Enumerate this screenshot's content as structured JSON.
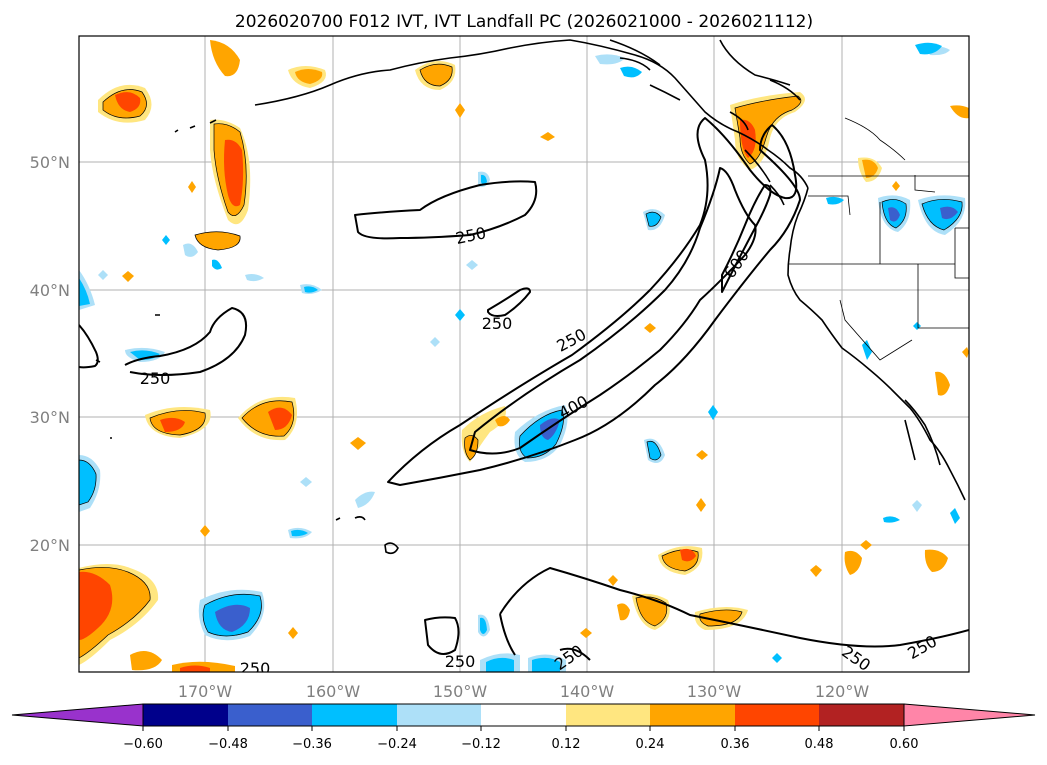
{
  "title": "2026020700 F012 IVT, IVT Landfall PC (2026021000 - 2026021112)",
  "latitude_labels": [
    "50°N",
    "40°N",
    "30°N",
    "20°N"
  ],
  "longitude_labels": [
    "170°W",
    "160°W",
    "150°W",
    "140°W",
    "130°W",
    "120°W"
  ],
  "contour_labels": [
    "250",
    "250",
    "250",
    "250",
    "250",
    "250",
    "250",
    "250",
    "400",
    "600"
  ],
  "colorbar": {
    "tick_labels": [
      "−0.60",
      "−0.48",
      "−0.36",
      "−0.24",
      "−0.12",
      "0.12",
      "0.24",
      "0.36",
      "0.48",
      "0.60"
    ],
    "colors": [
      "#9932CC",
      "#00008B",
      "#3A5FCD",
      "#00BFFF",
      "#ADE0F8",
      "#FFFFFF",
      "#FFE680",
      "#FFA500",
      "#FF4500",
      "#B22222",
      "#FF85A8"
    ],
    "extend": "both"
  },
  "colors": {
    "neg_light": "#ADE0F8",
    "neg_mid": "#00BFFF",
    "neg_strong": "#3A5FCD",
    "neg_darker": "#00008B",
    "pos_light": "#FFE680",
    "pos_mid": "#FFA500",
    "pos_strong": "#FF4500",
    "pos_darker": "#B22222",
    "contour": "#000000"
  }
}
